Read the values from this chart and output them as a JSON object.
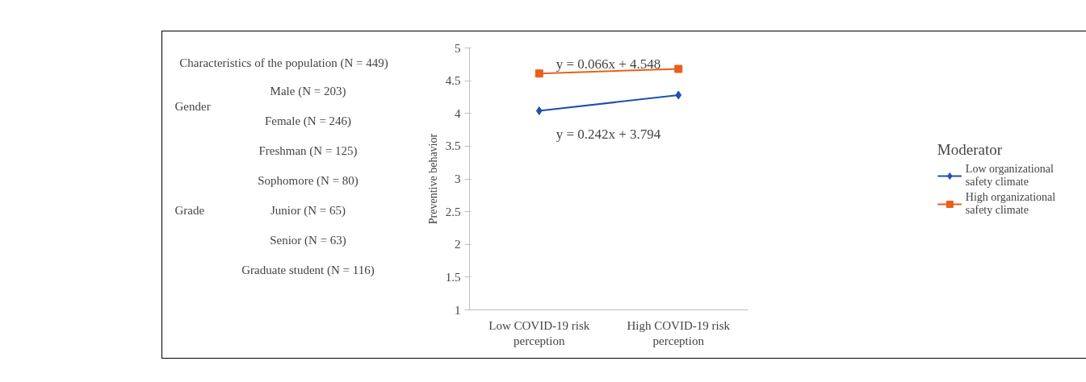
{
  "chart_data": [
    {
      "type": "other",
      "title": "Characteristics of the population (N = 449)",
      "categories": [
        "Male (N = 203)",
        "Female (N = 246)",
        "Freshman (N = 125)",
        "Sophomore (N = 80)",
        "Junior (N = 65)",
        "Senior (N = 63)",
        "Graduate student (N = 116)"
      ],
      "annotations": [
        "Gender",
        "Grade"
      ]
    },
    {
      "type": "line",
      "categories": [
        "Low COVID-19 risk perception",
        "High COVID-19 risk perception"
      ],
      "ylabel": "Preventive behavior",
      "ylim": [
        1,
        5
      ],
      "yticks": [
        1,
        1.5,
        2,
        2.5,
        3,
        3.5,
        4,
        4.5,
        5
      ],
      "grid": false,
      "legend": "right",
      "legend_title": "Moderator",
      "series": [
        {
          "name": "Low organizational safety climate",
          "color": "#2050b0",
          "marker": "diamond",
          "values": [
            4.04,
            4.28
          ]
        },
        {
          "name": "High organizational safety climate",
          "color": "#e8601c",
          "marker": "square",
          "values": [
            4.61,
            4.68
          ]
        }
      ],
      "annotations": [
        "y = 0.066x + 4.548",
        "y = 0.242x + 3.794"
      ]
    }
  ]
}
